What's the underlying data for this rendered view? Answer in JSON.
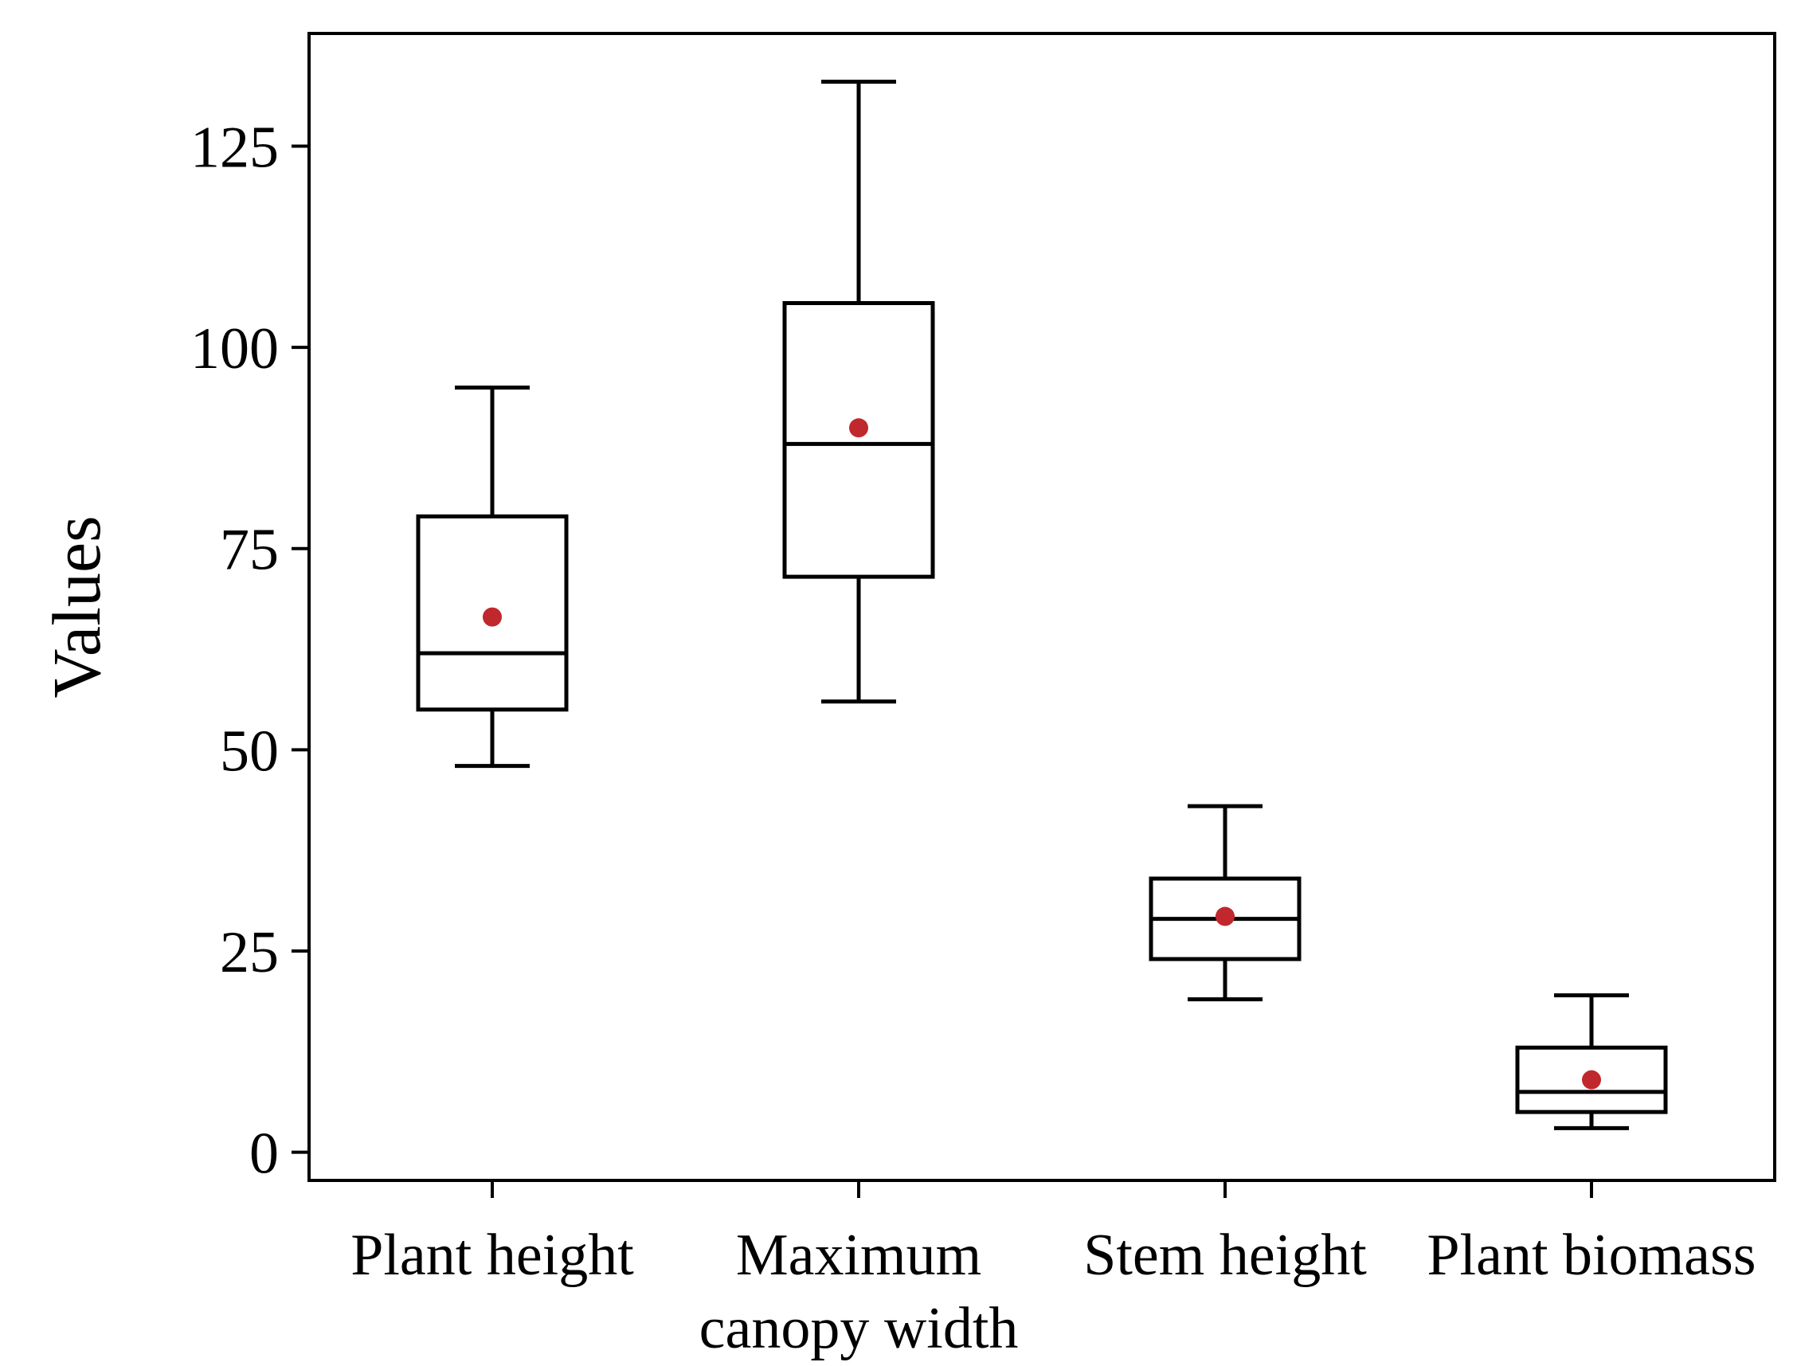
{
  "chart_data": {
    "type": "box",
    "title": "",
    "xlabel": "",
    "ylabel": "Values",
    "ylim": [
      -3.5,
      139
    ],
    "yticks": [
      0,
      25,
      50,
      75,
      100,
      125
    ],
    "grid": false,
    "categories": [
      "Plant height",
      "Maximum canopy width",
      "Stem height",
      "Plant biomass"
    ],
    "category_lines": [
      [
        "Plant height"
      ],
      [
        "Maximum",
        "canopy width"
      ],
      [
        "Stem height"
      ],
      [
        "Plant biomass"
      ]
    ],
    "boxes": [
      {
        "name": "Plant height",
        "whisker_low": 48,
        "q1": 55,
        "median": 62,
        "q3": 79,
        "whisker_high": 95,
        "mean": 66.5
      },
      {
        "name": "Maximum canopy width",
        "whisker_low": 56,
        "q1": 71.5,
        "median": 88,
        "q3": 105.5,
        "whisker_high": 133,
        "mean": 90
      },
      {
        "name": "Stem height",
        "whisker_low": 19,
        "q1": 24,
        "median": 29,
        "q3": 34,
        "whisker_high": 43,
        "mean": 29.3
      },
      {
        "name": "Plant biomass",
        "whisker_low": 3,
        "q1": 5,
        "median": 7.5,
        "q3": 13,
        "whisker_high": 19.5,
        "mean": 9
      }
    ],
    "colors": {
      "box": "#000000",
      "mean_marker": "#c0282d"
    }
  }
}
